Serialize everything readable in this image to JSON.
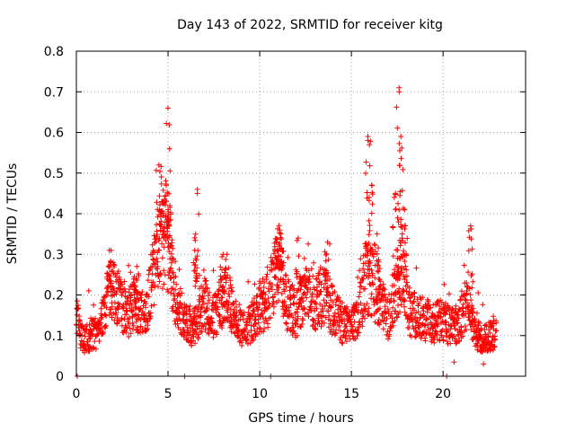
{
  "colors": {
    "marker": "#ff0000",
    "grid": "#a0a0a0",
    "axis": "#000000",
    "background": "#ffffff"
  },
  "chart_data": {
    "type": "scatter",
    "title": "Day 143 of 2022, SRMTID for receiver kitg",
    "xlabel": "GPS time / hours",
    "ylabel": "SRMTID / TECUs",
    "xlim": [
      0,
      24.5
    ],
    "ylim": [
      0,
      0.8
    ],
    "xticks": [
      0,
      5,
      10,
      15,
      20
    ],
    "xtick_labels": [
      "0",
      "5",
      "10",
      "15",
      "20"
    ],
    "yticks": [
      0,
      0.1,
      0.2,
      0.3,
      0.4,
      0.5,
      0.6,
      0.7,
      0.8
    ],
    "ytick_labels": [
      "0",
      "0.1",
      "0.2",
      "0.3",
      "0.4",
      "0.5",
      "0.6",
      "0.7",
      "0.8"
    ],
    "grid": true,
    "marker": "+",
    "data_range_hours": [
      0,
      22.9
    ],
    "series": [
      {
        "name": "SRMTID",
        "baseline_envelope_points": [
          [
            0.0,
            0.18
          ],
          [
            0.2,
            0.1
          ],
          [
            0.5,
            0.09
          ],
          [
            0.8,
            0.1
          ],
          [
            1.2,
            0.11
          ],
          [
            1.5,
            0.15
          ],
          [
            1.8,
            0.22
          ],
          [
            2.1,
            0.22
          ],
          [
            2.4,
            0.18
          ],
          [
            2.8,
            0.15
          ],
          [
            3.2,
            0.18
          ],
          [
            3.6,
            0.15
          ],
          [
            4.0,
            0.2
          ],
          [
            4.3,
            0.3
          ],
          [
            4.6,
            0.35
          ],
          [
            4.9,
            0.32
          ],
          [
            5.2,
            0.24
          ],
          [
            5.6,
            0.17
          ],
          [
            6.0,
            0.13
          ],
          [
            6.3,
            0.11
          ],
          [
            6.6,
            0.14
          ],
          [
            7.0,
            0.18
          ],
          [
            7.4,
            0.14
          ],
          [
            7.8,
            0.17
          ],
          [
            8.2,
            0.22
          ],
          [
            8.6,
            0.14
          ],
          [
            9.0,
            0.12
          ],
          [
            9.5,
            0.13
          ],
          [
            10.0,
            0.17
          ],
          [
            10.4,
            0.18
          ],
          [
            10.8,
            0.25
          ],
          [
            11.1,
            0.28
          ],
          [
            11.5,
            0.18
          ],
          [
            12.0,
            0.15
          ],
          [
            12.5,
            0.22
          ],
          [
            13.0,
            0.18
          ],
          [
            13.5,
            0.2
          ],
          [
            14.0,
            0.16
          ],
          [
            14.5,
            0.13
          ],
          [
            15.0,
            0.12
          ],
          [
            15.4,
            0.15
          ],
          [
            15.8,
            0.24
          ],
          [
            16.2,
            0.22
          ],
          [
            16.6,
            0.18
          ],
          [
            17.0,
            0.14
          ],
          [
            17.4,
            0.22
          ],
          [
            17.8,
            0.26
          ],
          [
            18.2,
            0.15
          ],
          [
            18.6,
            0.15
          ],
          [
            19.0,
            0.14
          ],
          [
            19.5,
            0.13
          ],
          [
            20.0,
            0.14
          ],
          [
            20.4,
            0.12
          ],
          [
            20.8,
            0.13
          ],
          [
            21.3,
            0.18
          ],
          [
            21.7,
            0.11
          ],
          [
            22.1,
            0.09
          ],
          [
            22.5,
            0.1
          ],
          [
            22.9,
            0.1
          ]
        ],
        "peaks": [
          [
            4.5,
            0.52
          ],
          [
            4.7,
            0.43
          ],
          [
            5.0,
            0.66
          ],
          [
            5.1,
            0.42
          ],
          [
            6.6,
            0.46
          ],
          [
            6.5,
            0.35
          ],
          [
            8.0,
            0.3
          ],
          [
            10.9,
            0.33
          ],
          [
            11.1,
            0.36
          ],
          [
            12.1,
            0.34
          ],
          [
            13.7,
            0.33
          ],
          [
            15.9,
            0.59
          ],
          [
            16.1,
            0.47
          ],
          [
            16.4,
            0.35
          ],
          [
            17.4,
            0.45
          ],
          [
            17.6,
            0.71
          ],
          [
            17.7,
            0.59
          ],
          [
            17.9,
            0.41
          ],
          [
            21.5,
            0.37
          ],
          [
            3.3,
            0.27
          ],
          [
            1.8,
            0.31
          ]
        ],
        "near_zero_points": [
          [
            0.05,
            0.0
          ],
          [
            5.9,
            0.0
          ],
          [
            10.6,
            0.0
          ],
          [
            20.2,
            0.0
          ],
          [
            20.6,
            0.035
          ],
          [
            22.2,
            0.03
          ]
        ]
      }
    ]
  }
}
